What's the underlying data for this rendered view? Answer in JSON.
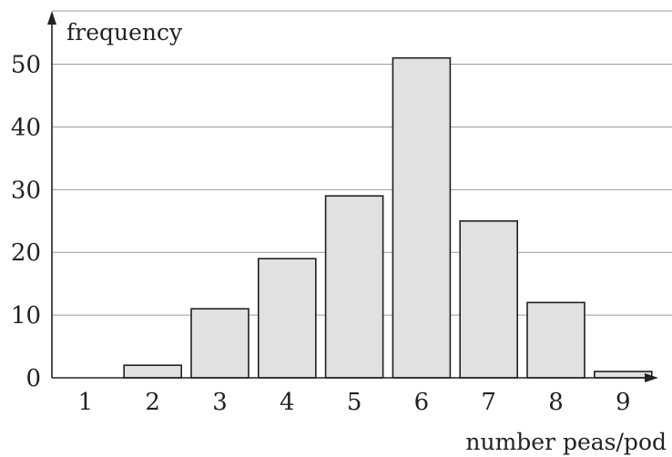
{
  "chart_data": {
    "type": "bar",
    "categories": [
      "1",
      "2",
      "3",
      "4",
      "5",
      "6",
      "7",
      "8",
      "9"
    ],
    "values": [
      0,
      2,
      11,
      19,
      29,
      51,
      25,
      12,
      1
    ],
    "xlabel": "number peas/pod",
    "ylabel": "frequency",
    "ylim": [
      0,
      60
    ],
    "yticks": [
      0,
      10,
      20,
      30,
      40,
      50
    ],
    "grid": true,
    "colors": {
      "bar_fill": "#e1e1e1",
      "bar_stroke": "#1f1f1f",
      "grid": "#9a9a9a"
    }
  }
}
